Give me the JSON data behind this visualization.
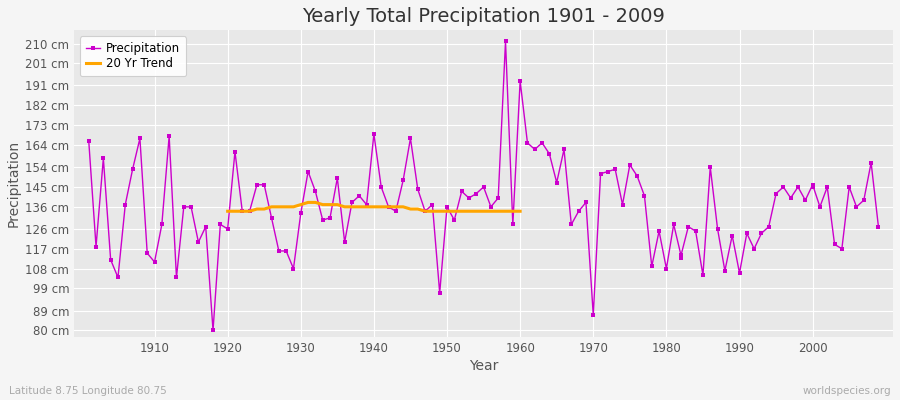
{
  "title": "Yearly Total Precipitation 1901 - 2009",
  "xlabel": "Year",
  "ylabel": "Precipitation",
  "subtitle": "Latitude 8.75 Longitude 80.75",
  "watermark": "worldspecies.org",
  "years": [
    1901,
    1902,
    1903,
    1904,
    1905,
    1906,
    1907,
    1908,
    1909,
    1910,
    1911,
    1912,
    1913,
    1914,
    1915,
    1916,
    1917,
    1918,
    1919,
    1920,
    1921,
    1922,
    1923,
    1924,
    1925,
    1926,
    1927,
    1928,
    1929,
    1930,
    1931,
    1932,
    1933,
    1934,
    1935,
    1936,
    1937,
    1938,
    1939,
    1940,
    1941,
    1942,
    1943,
    1944,
    1945,
    1946,
    1947,
    1948,
    1949,
    1950,
    1951,
    1952,
    1953,
    1954,
    1955,
    1956,
    1957,
    1958,
    1959,
    1960,
    1961,
    1962,
    1963,
    1964,
    1965,
    1966,
    1967,
    1968,
    1969,
    1970,
    1971,
    1972,
    1973,
    1974,
    1975,
    1976,
    1977,
    1978,
    1979,
    1980,
    1981,
    1982,
    1983,
    1984,
    1985,
    1986,
    1987,
    1988,
    1989,
    1990,
    1991,
    1992,
    1993,
    1994,
    1995,
    1996,
    1997,
    1998,
    1999,
    2000,
    2001,
    2002,
    2003,
    2004,
    2005,
    2006,
    2007,
    2008,
    2009
  ],
  "precip": [
    166,
    118,
    158,
    112,
    104,
    137,
    153,
    167,
    115,
    111,
    128,
    168,
    104,
    136,
    136,
    120,
    127,
    80,
    128,
    126,
    161,
    134,
    134,
    146,
    146,
    131,
    116,
    116,
    108,
    133,
    152,
    143,
    130,
    131,
    149,
    120,
    138,
    141,
    137,
    169,
    145,
    136,
    134,
    148,
    167,
    144,
    134,
    137,
    97,
    136,
    130,
    143,
    140,
    142,
    145,
    136,
    140,
    211,
    128,
    193,
    165,
    162,
    165,
    160,
    147,
    162,
    128,
    134,
    138,
    87,
    151,
    152,
    153,
    137,
    155,
    150,
    141,
    109,
    125,
    108,
    128,
    114,
    127,
    125,
    105,
    154,
    126,
    107,
    123,
    106,
    124,
    117,
    124,
    127,
    142,
    145,
    140,
    145,
    139,
    146,
    136,
    145,
    119,
    117,
    145,
    136,
    139,
    156,
    127
  ],
  "trend_years": [
    1920,
    1921,
    1922,
    1923,
    1924,
    1925,
    1926,
    1927,
    1928,
    1929,
    1930,
    1931,
    1932,
    1933,
    1934,
    1935,
    1936,
    1937,
    1938,
    1939,
    1940,
    1941,
    1942,
    1943,
    1944,
    1945,
    1946,
    1947,
    1948,
    1949,
    1950,
    1951,
    1952,
    1953,
    1954,
    1955,
    1956,
    1957,
    1958,
    1959,
    1960
  ],
  "trend_values": [
    134,
    134,
    134,
    134,
    135,
    135,
    136,
    136,
    136,
    136,
    137,
    138,
    138,
    137,
    137,
    137,
    136,
    136,
    136,
    136,
    136,
    136,
    136,
    136,
    136,
    135,
    135,
    134,
    134,
    134,
    134,
    134,
    134,
    134,
    134,
    134,
    134,
    134,
    134,
    134,
    134
  ],
  "isolated_dot_year": 1982,
  "isolated_dot_value": 113,
  "isolated_dot2_year": 2000,
  "isolated_dot2_value": 145,
  "precip_color": "#cc00cc",
  "trend_color": "#FFA500",
  "bg_color": "#f5f5f5",
  "plot_bg_color": "#e8e8e8",
  "grid_color": "#ffffff",
  "yticks": [
    80,
    89,
    99,
    108,
    117,
    126,
    136,
    145,
    154,
    164,
    173,
    182,
    191,
    201,
    210
  ],
  "ytick_labels": [
    "80 cm",
    "89 cm",
    "99 cm",
    "108 cm",
    "117 cm",
    "126 cm",
    "136 cm",
    "145 cm",
    "154 cm",
    "164 cm",
    "173 cm",
    "182 cm",
    "191 cm",
    "201 cm",
    "210 cm"
  ],
  "ylim": [
    77,
    216
  ],
  "xlim": [
    1899,
    2011
  ],
  "xticks": [
    1910,
    1920,
    1930,
    1940,
    1950,
    1960,
    1970,
    1980,
    1990,
    2000
  ],
  "title_fontsize": 14,
  "axis_label_fontsize": 10,
  "tick_fontsize": 8.5
}
